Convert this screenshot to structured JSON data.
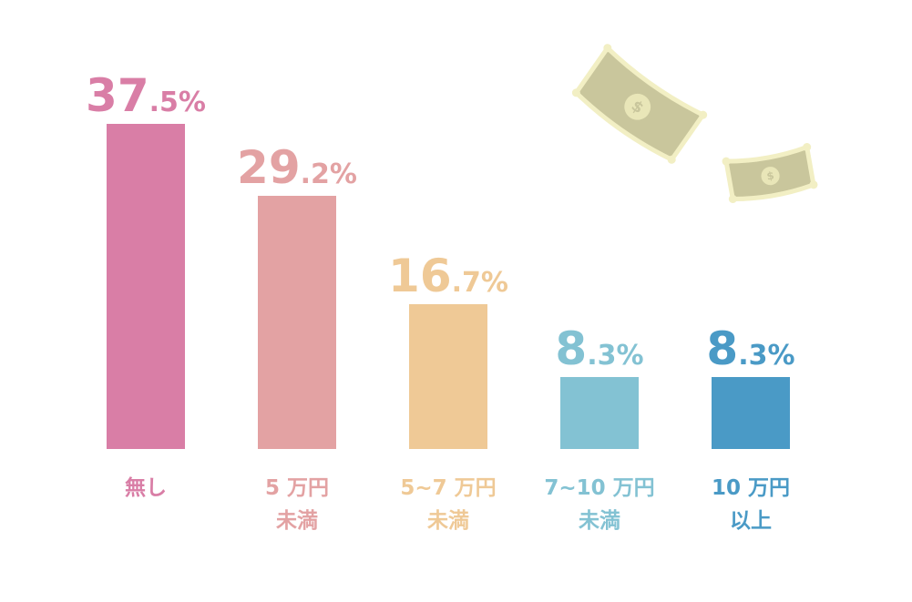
{
  "chart_data": {
    "type": "bar",
    "title": "",
    "xlabel": "",
    "ylabel": "",
    "ylim": [
      0,
      40
    ],
    "grid": false,
    "unit": "%",
    "categories": [
      [
        "無し"
      ],
      [
        "5 万円",
        "未満"
      ],
      [
        "5~7 万円",
        "未満"
      ],
      [
        "7~10 万円",
        "未満"
      ],
      [
        "10 万円",
        "以上"
      ]
    ],
    "values": [
      37.5,
      29.2,
      16.7,
      8.3,
      8.3
    ],
    "value_labels": [
      {
        "major": "37",
        "minor": ".5%"
      },
      {
        "major": "29",
        "minor": ".2%"
      },
      {
        "major": "16",
        "minor": ".7%"
      },
      {
        "major": "8",
        "minor": ".3%"
      },
      {
        "major": "8",
        "minor": ".3%"
      }
    ],
    "colors": [
      "#d97ea6",
      "#e3a2a3",
      "#efc996",
      "#83c2d3",
      "#4a9ac6"
    ]
  },
  "decorations": {
    "banknote_icon": "dollar-banknote-icon",
    "note_color": "#c9c69c",
    "note_border": "#f2efc4",
    "coin_color": "#e9e6b8",
    "symbol": "$"
  }
}
